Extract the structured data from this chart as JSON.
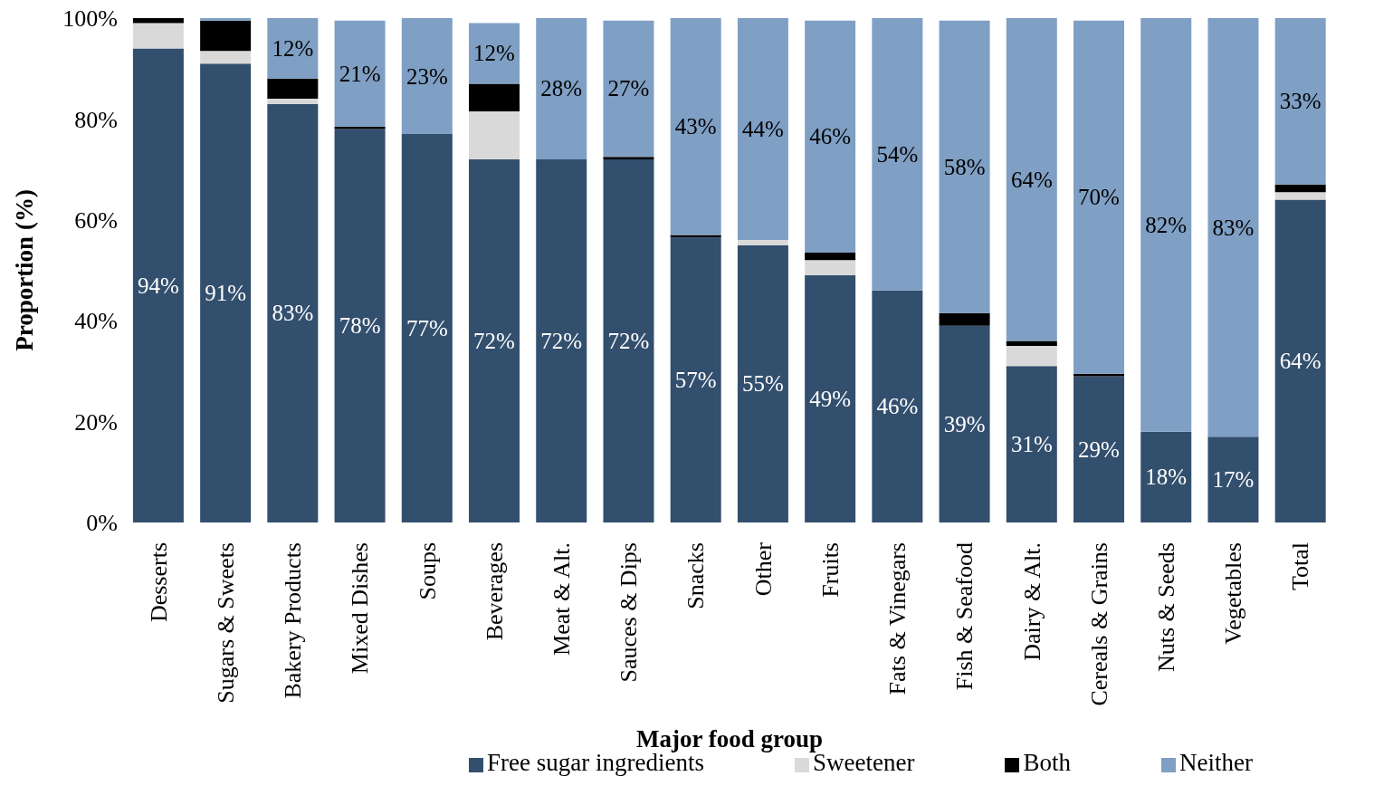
{
  "chart_data": {
    "type": "bar",
    "stacked": true,
    "xlabel": "Major food group",
    "ylabel": "Proportion (%)",
    "categories": [
      "Desserts",
      "Sugars & Sweets",
      "Bakery Products",
      "Mixed Dishes",
      "Soups",
      "Beverages",
      "Meat & Alt.",
      "Sauces & Dips",
      "Snacks",
      "Other",
      "Fruits",
      "Fats & Vinegars",
      "Fish & Seafood",
      "Dairy & Alt.",
      "Cereals & Grains",
      "Nuts & Seeds",
      "Vegetables",
      "Total"
    ],
    "series": [
      {
        "name": "Free sugar ingredients",
        "color": "#334f6e",
        "values": [
          94,
          91,
          83,
          78,
          77,
          72,
          72,
          72,
          56.5,
          55,
          49,
          46,
          39,
          31,
          29,
          18,
          17,
          64
        ],
        "value_labels": [
          "94%",
          "91%",
          "83%",
          "78%",
          "77%",
          "72%",
          "72%",
          "72%",
          "57%",
          "55%",
          "49%",
          "46%",
          "39%",
          "31%",
          "29%",
          "18%",
          "17%",
          "64%"
        ]
      },
      {
        "name": "Sweetener",
        "color": "#d9d9d9",
        "values": [
          5,
          2.5,
          1,
          0,
          0,
          9.5,
          0,
          0,
          0,
          1,
          3,
          0,
          0,
          4,
          0,
          0,
          0,
          1.5
        ]
      },
      {
        "name": "Both",
        "color": "#000000",
        "values": [
          1,
          6,
          4,
          0.5,
          0,
          5.5,
          0,
          0.5,
          0.5,
          0,
          1.5,
          0,
          2.5,
          1,
          0.5,
          0,
          0,
          1.5
        ]
      },
      {
        "name": "Neither",
        "color": "#7f9fc4",
        "values": [
          0,
          0.5,
          12,
          21,
          23,
          12,
          28,
          27,
          43,
          44,
          46,
          54,
          58,
          64,
          70,
          82,
          83,
          33
        ],
        "value_labels": [
          null,
          null,
          "12%",
          "21%",
          "23%",
          "12%",
          "28%",
          "27%",
          "43%",
          "44%",
          "46%",
          "54%",
          "58%",
          "64%",
          "70%",
          "82%",
          "83%",
          "33%"
        ]
      }
    ],
    "ylim": [
      0,
      100
    ],
    "yticks": [
      {
        "value": 0,
        "label": "0%"
      },
      {
        "value": 20,
        "label": "20%"
      },
      {
        "value": 40,
        "label": "40%"
      },
      {
        "value": 60,
        "label": "60%"
      },
      {
        "value": 80,
        "label": "80%"
      },
      {
        "value": 100,
        "label": "100%"
      }
    ],
    "grid": false,
    "legend": "bottom"
  }
}
